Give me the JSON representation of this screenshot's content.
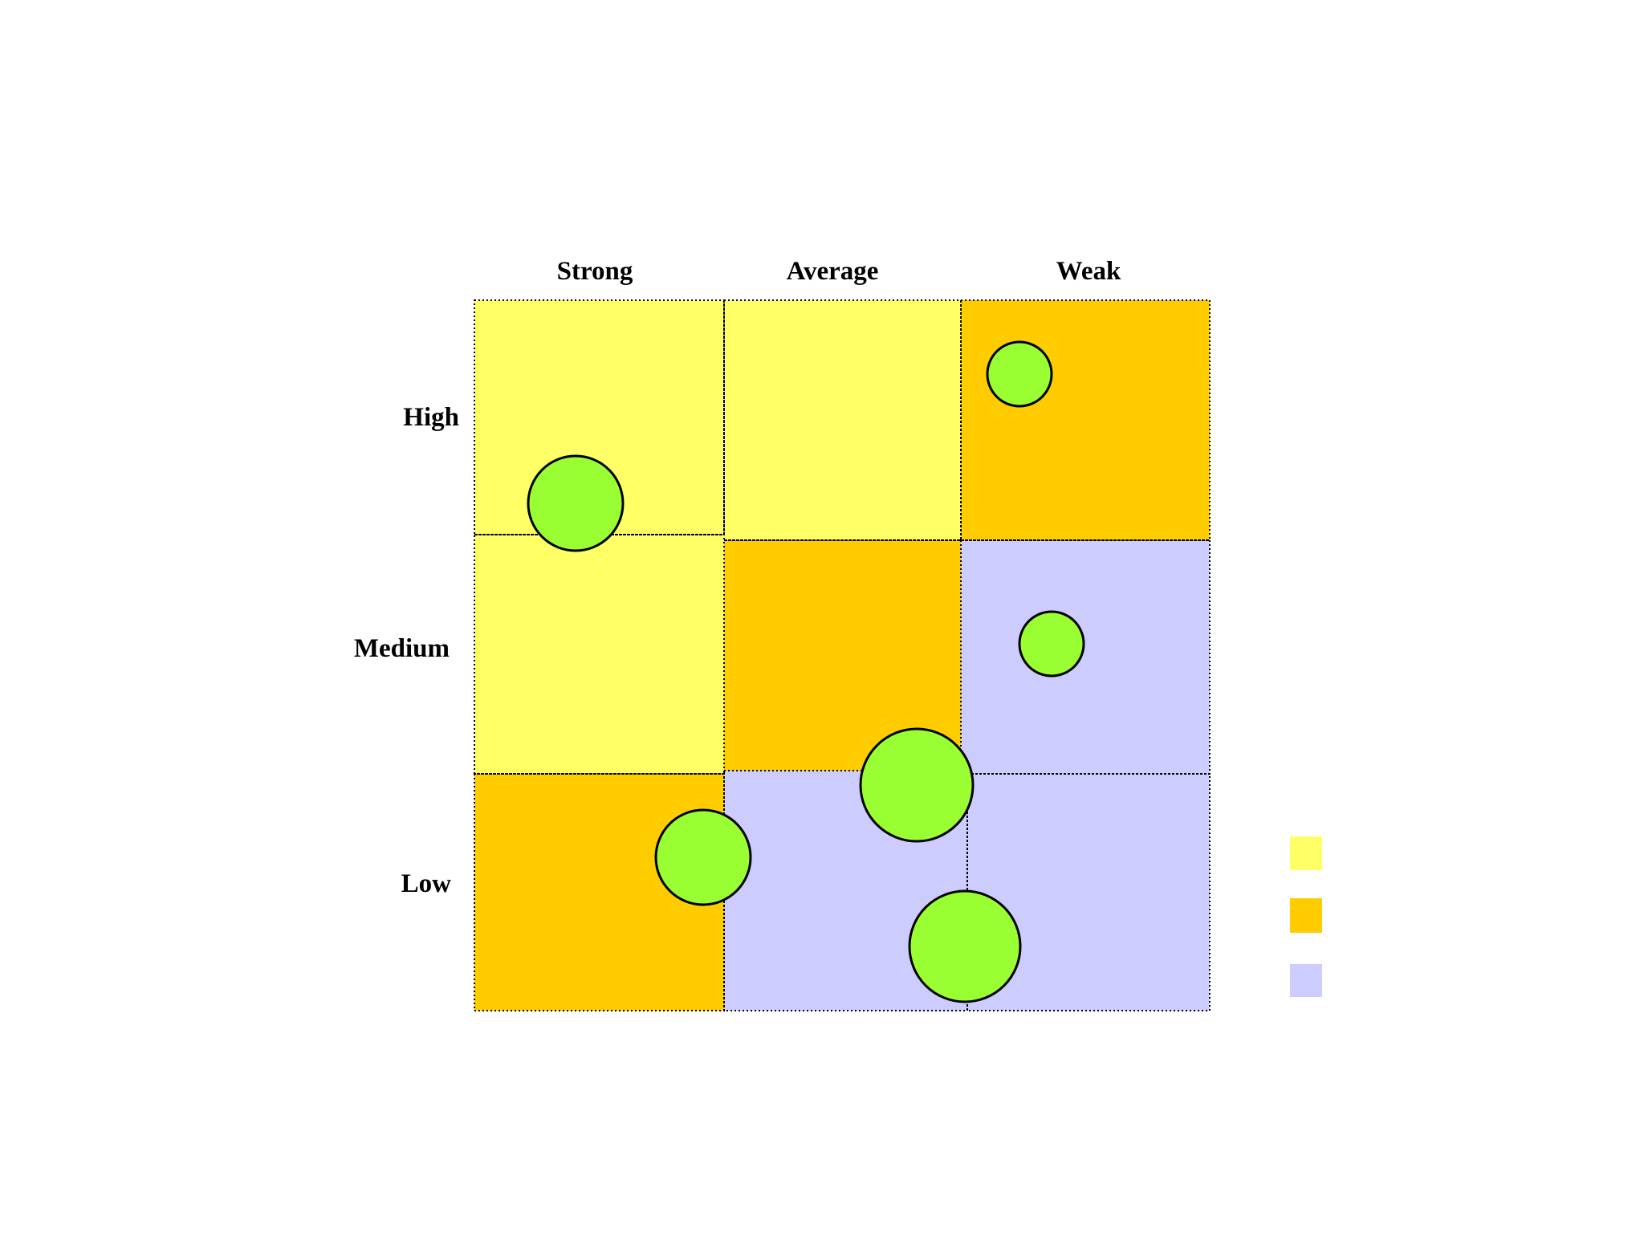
{
  "matrix": {
    "column_headers": [
      "Strong",
      "Average",
      "Weak"
    ],
    "row_headers": [
      "High",
      "Medium",
      "Low"
    ],
    "cell_colors": [
      [
        "#ffff66",
        "#ffff66",
        "#ffcc00"
      ],
      [
        "#ffff66",
        "#ffcc00",
        "#ccccff"
      ],
      [
        "#ffcc00",
        "#ccccff",
        "#ccccff"
      ]
    ],
    "bubble_color": "#99ff33",
    "legend_swatches": [
      "#ffff66",
      "#ffcc00",
      "#ccccff"
    ]
  }
}
